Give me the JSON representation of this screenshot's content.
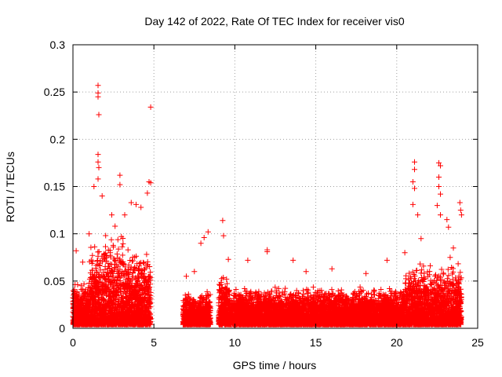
{
  "chart_data": {
    "type": "scatter",
    "title": "Day 142 of 2022, Rate Of TEC Index for receiver vis0",
    "xlabel": "GPS time / hours",
    "ylabel": "ROTI / TECUs",
    "xlim": [
      0,
      25
    ],
    "ylim": [
      0,
      0.3
    ],
    "xticks": [
      {
        "value": 0,
        "label": "0"
      },
      {
        "value": 5,
        "label": "5"
      },
      {
        "value": 10,
        "label": "10"
      },
      {
        "value": 15,
        "label": "15"
      },
      {
        "value": 20,
        "label": "20"
      },
      {
        "value": 25,
        "label": "25"
      }
    ],
    "yticks": [
      {
        "value": 0,
        "label": "0"
      },
      {
        "value": 0.05,
        "label": "0.05"
      },
      {
        "value": 0.1,
        "label": "0.1"
      },
      {
        "value": 0.15,
        "label": "0.15"
      },
      {
        "value": 0.2,
        "label": "0.2"
      },
      {
        "value": 0.25,
        "label": "0.25"
      },
      {
        "value": 0.3,
        "label": "0.3"
      }
    ],
    "grid": true,
    "marker": "+",
    "color": "#ff0000",
    "x_coverage": [
      [
        0,
        4.8
      ],
      [
        6.8,
        8.5
      ],
      [
        9.0,
        24.0
      ]
    ],
    "points": [
      [
        1.55,
        0.257
      ],
      [
        1.55,
        0.249
      ],
      [
        1.55,
        0.245
      ],
      [
        1.6,
        0.226
      ],
      [
        4.8,
        0.234
      ],
      [
        1.55,
        0.184
      ],
      [
        1.55,
        0.176
      ],
      [
        1.6,
        0.17
      ],
      [
        1.55,
        0.158
      ],
      [
        2.9,
        0.162
      ],
      [
        2.9,
        0.152
      ],
      [
        4.7,
        0.155
      ],
      [
        4.8,
        0.154
      ],
      [
        4.6,
        0.143
      ],
      [
        3.6,
        0.133
      ],
      [
        3.9,
        0.131
      ],
      [
        4.2,
        0.128
      ],
      [
        1.3,
        0.15
      ],
      [
        1.8,
        0.14
      ],
      [
        2.4,
        0.12
      ],
      [
        2.6,
        0.108
      ],
      [
        0.2,
        0.082
      ],
      [
        0.6,
        0.07
      ],
      [
        1.0,
        0.1
      ],
      [
        3.2,
        0.12
      ],
      [
        7.0,
        0.055
      ],
      [
        7.5,
        0.06
      ],
      [
        7.9,
        0.09
      ],
      [
        8.1,
        0.096
      ],
      [
        8.35,
        0.102
      ],
      [
        9.25,
        0.114
      ],
      [
        9.3,
        0.098
      ],
      [
        9.6,
        0.073
      ],
      [
        10.8,
        0.072
      ],
      [
        12.0,
        0.081
      ],
      [
        12.0,
        0.083
      ],
      [
        13.6,
        0.072
      ],
      [
        14.4,
        0.06
      ],
      [
        16.0,
        0.063
      ],
      [
        18.1,
        0.058
      ],
      [
        19.4,
        0.072
      ],
      [
        20.5,
        0.08
      ],
      [
        21.1,
        0.176
      ],
      [
        21.1,
        0.168
      ],
      [
        21.0,
        0.155
      ],
      [
        21.1,
        0.148
      ],
      [
        21.0,
        0.131
      ],
      [
        21.3,
        0.12
      ],
      [
        21.5,
        0.095
      ],
      [
        22.6,
        0.175
      ],
      [
        22.7,
        0.172
      ],
      [
        22.6,
        0.16
      ],
      [
        22.6,
        0.15
      ],
      [
        22.7,
        0.142
      ],
      [
        22.5,
        0.13
      ],
      [
        22.7,
        0.12
      ],
      [
        23.1,
        0.115
      ],
      [
        23.2,
        0.107
      ],
      [
        23.9,
        0.133
      ],
      [
        23.95,
        0.125
      ],
      [
        24.0,
        0.12
      ],
      [
        23.5,
        0.085
      ],
      [
        23.3,
        0.075
      ]
    ]
  }
}
